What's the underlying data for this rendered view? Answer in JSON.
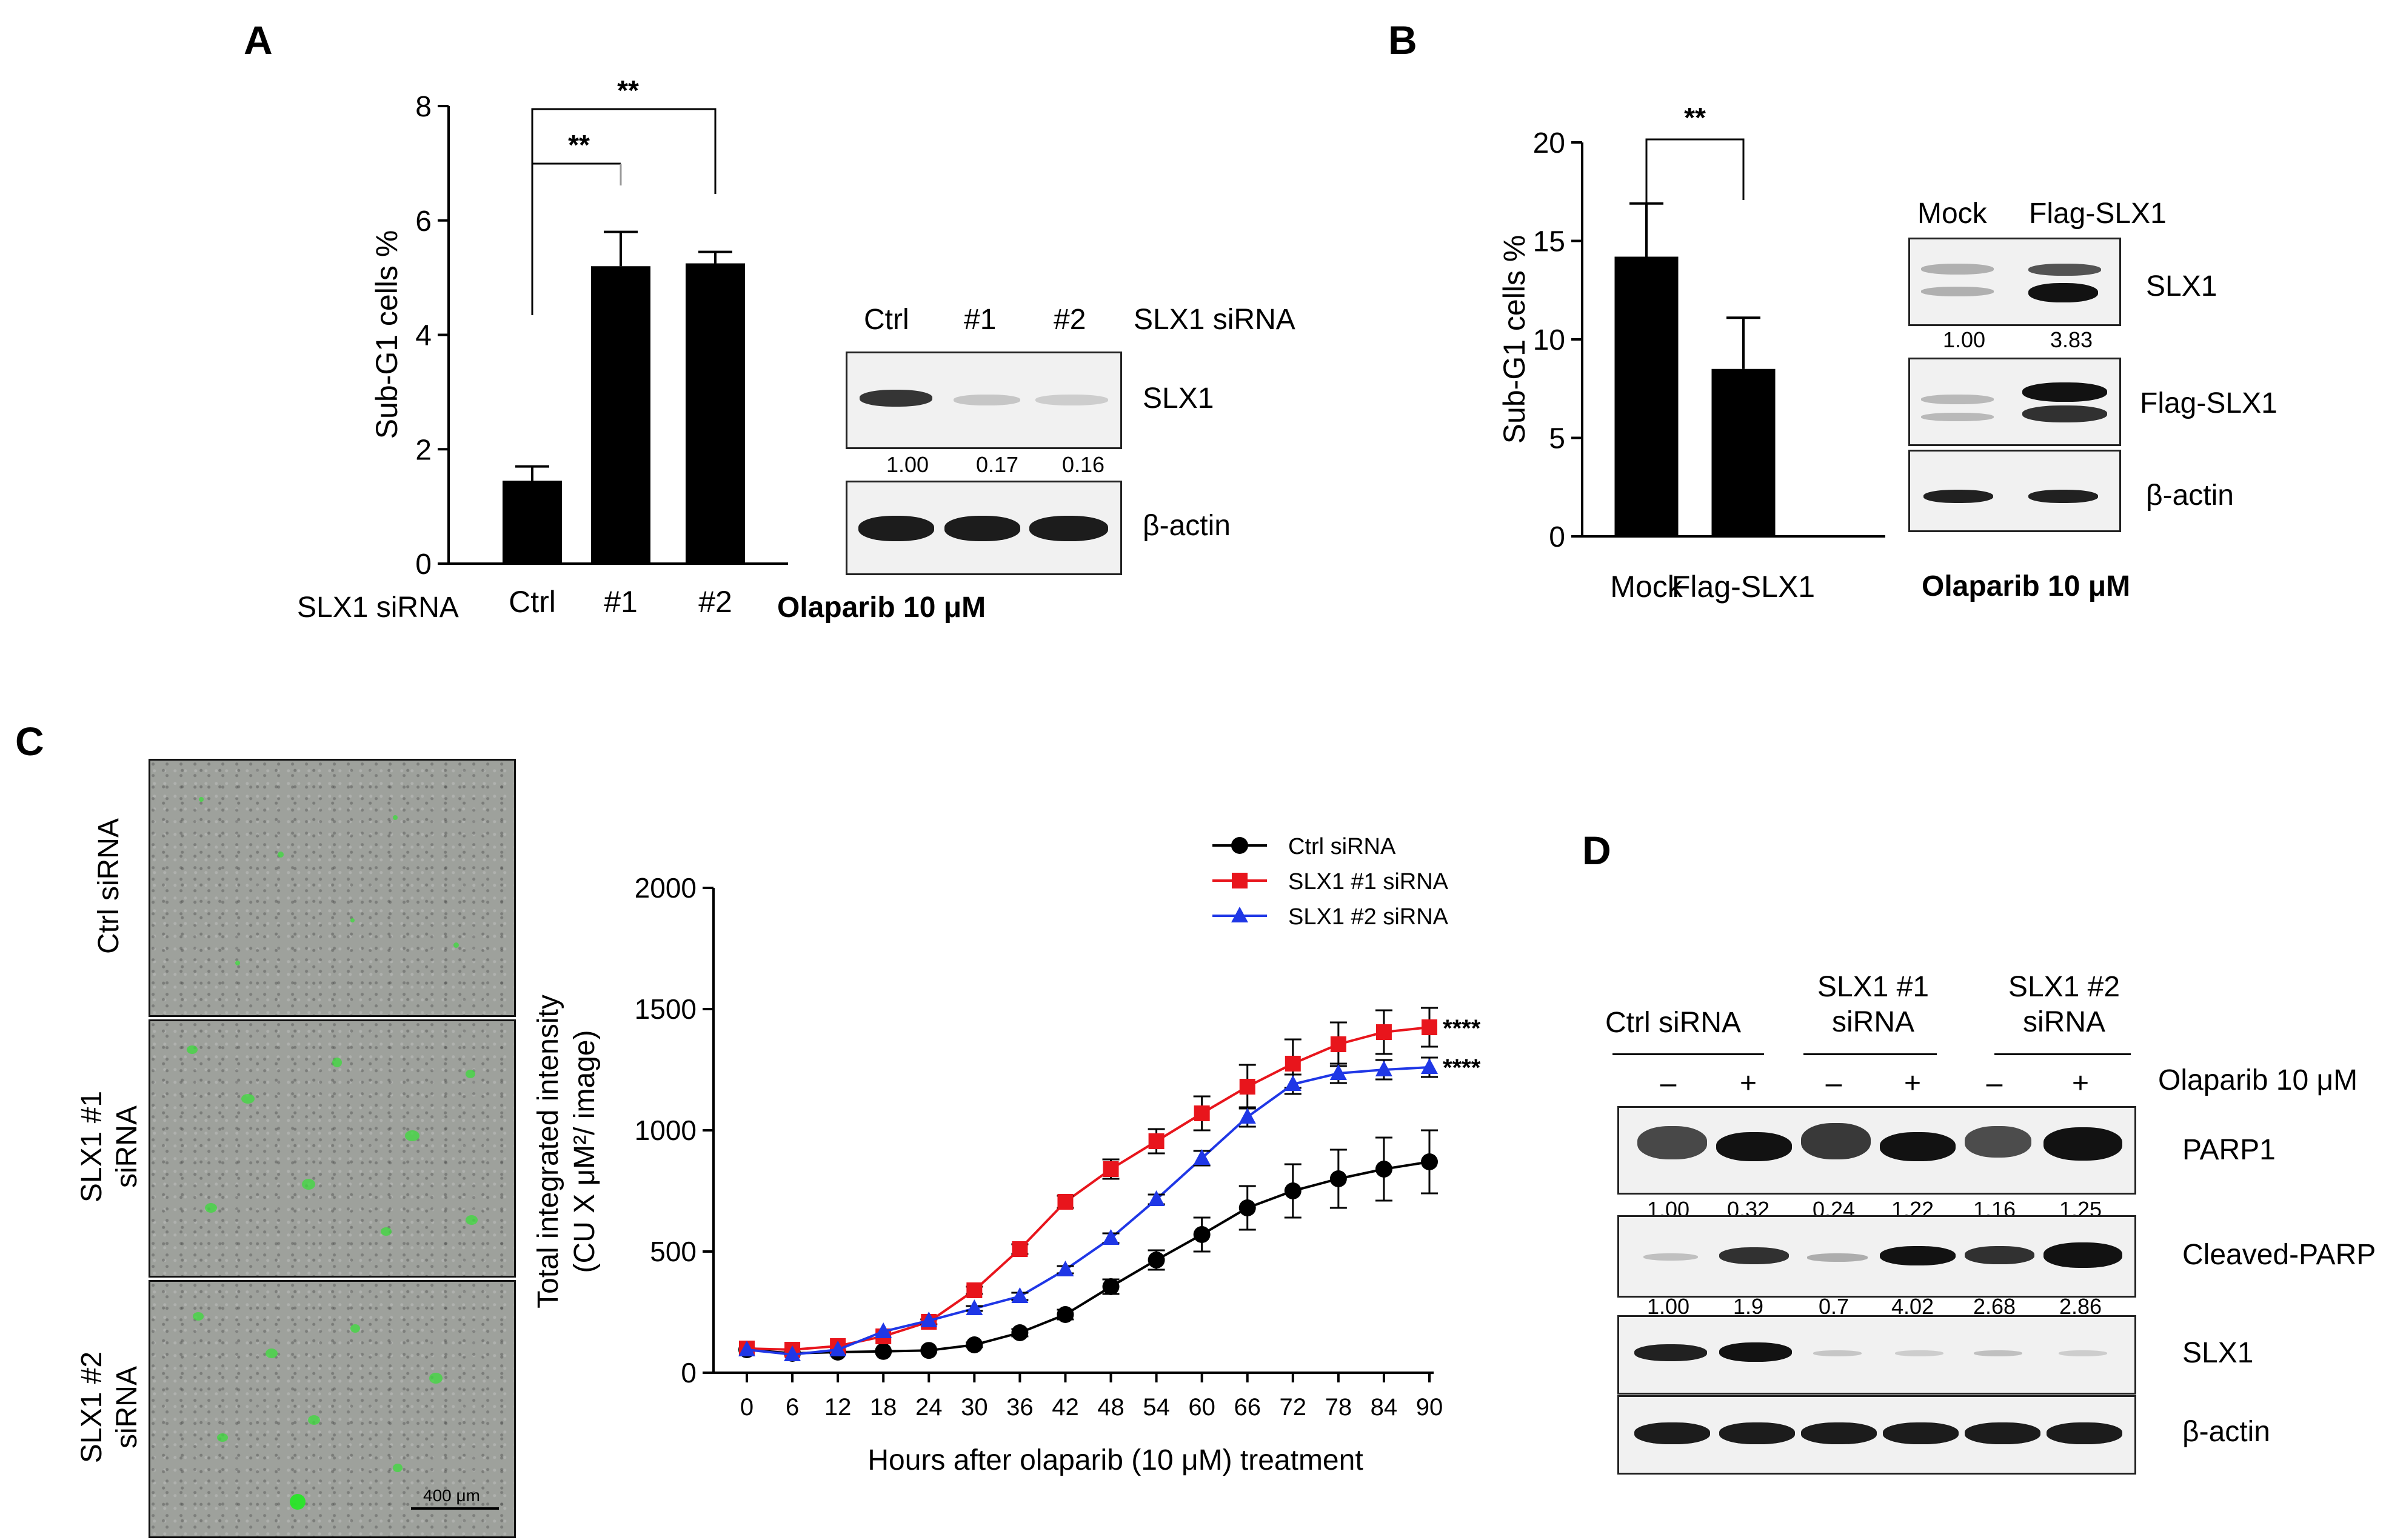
{
  "panels": {
    "A": "A",
    "B": "B",
    "C": "C",
    "D": "D"
  },
  "panel_a": {
    "row_label": "SLX1 siRNA",
    "categories": [
      "Ctrl",
      "#1",
      "#2"
    ],
    "sig": [
      "**",
      "**"
    ],
    "blot": {
      "lanes": [
        "Ctrl",
        "#1",
        "#2"
      ],
      "header_label": "SLX1 siRNA",
      "bands": [
        "SLX1",
        "β-actin"
      ],
      "quant": [
        "1.00",
        "0.17",
        "0.16"
      ],
      "treatment": "Olaparib 10 μM"
    }
  },
  "panel_b": {
    "sig": "**",
    "blot": {
      "lanes": [
        "Mock",
        "Flag-SLX1"
      ],
      "bands": [
        "SLX1",
        "Flag-SLX1",
        "β-actin"
      ],
      "quant": [
        "1.00",
        "3.83"
      ],
      "treatment": "Olaparib 10 μM"
    }
  },
  "panel_c": {
    "images": [
      "Ctrl siRNA",
      "SLX1 #1 siRNA",
      "SLX1 #2 siRNA"
    ],
    "scalebar": "400 μm",
    "sig": [
      "****",
      "****"
    ]
  },
  "panel_d": {
    "groups": [
      "Ctrl siRNA",
      "SLX1 #1 siRNA",
      "SLX1 #2 siRNA"
    ],
    "treatment": "Olaparib 10 μM",
    "signs": [
      "–",
      "+",
      "–",
      "+",
      "–",
      "+"
    ],
    "bands": [
      "PARP1",
      "Cleaved-PARP",
      "SLX1",
      "β-actin"
    ],
    "quant_parp": [
      "1.00",
      "0.32",
      "0.24",
      "1.22",
      "1.16",
      "1.25"
    ],
    "quant_cleaved": [
      "1.00",
      "1.9",
      "0.7",
      "4.02",
      "2.68",
      "2.86"
    ]
  },
  "chart_data": [
    {
      "type": "bar",
      "panel": "A",
      "categories": [
        "Ctrl",
        "#1",
        "#2"
      ],
      "values": [
        1.45,
        5.2,
        5.25
      ],
      "errors": [
        0.25,
        0.6,
        0.2
      ],
      "ylabel": "Sub-G1 cells %",
      "ylim": [
        0,
        8
      ],
      "yticks": [
        "0",
        "2",
        "4",
        "6",
        "8"
      ]
    },
    {
      "type": "bar",
      "panel": "B",
      "categories": [
        "Mock",
        "Flag-SLX1"
      ],
      "values": [
        14.2,
        8.5
      ],
      "errors": [
        2.7,
        2.6
      ],
      "ylabel": "Sub-G1 cells %",
      "ylim": [
        0,
        20
      ],
      "yticks": [
        "0",
        "5",
        "10",
        "15",
        "20"
      ]
    },
    {
      "type": "line",
      "panel": "C",
      "xlabel": "Hours after olaparib (10 μM) treatment",
      "ylabel": "Total integrated intensity",
      "ylabel2": "(CU X μM²/ image)",
      "xlim": [
        0,
        90
      ],
      "ylim": [
        0,
        2000
      ],
      "x": [
        0,
        6,
        12,
        18,
        24,
        30,
        36,
        42,
        48,
        54,
        60,
        66,
        72,
        78,
        84,
        90
      ],
      "xticks": [
        "0",
        "6",
        "12",
        "18",
        "24",
        "30",
        "36",
        "42",
        "48",
        "54",
        "60",
        "66",
        "72",
        "78",
        "84",
        "90"
      ],
      "yticks": [
        "0",
        "500",
        "1000",
        "1500",
        "2000"
      ],
      "series": [
        {
          "name": "Ctrl siRNA",
          "color": "#000000",
          "marker": "circle",
          "values": [
            95,
            80,
            85,
            88,
            92,
            115,
            165,
            240,
            355,
            465,
            570,
            680,
            750,
            800,
            840,
            870
          ],
          "errors": [
            0,
            0,
            0,
            0,
            0,
            10,
            15,
            20,
            30,
            40,
            70,
            90,
            110,
            120,
            130,
            130
          ]
        },
        {
          "name": "SLX1 #1 siRNA",
          "color": "#e8151c",
          "marker": "square",
          "values": [
            100,
            95,
            110,
            150,
            210,
            340,
            510,
            705,
            840,
            955,
            1070,
            1180,
            1275,
            1355,
            1405,
            1425
          ],
          "errors": [
            0,
            0,
            0,
            0,
            10,
            15,
            20,
            25,
            40,
            50,
            70,
            90,
            100,
            90,
            90,
            80
          ]
        },
        {
          "name": "SLX1 #2 siRNA",
          "color": "#1f37e6",
          "marker": "triangle",
          "values": [
            95,
            75,
            95,
            170,
            215,
            265,
            315,
            425,
            555,
            715,
            885,
            1055,
            1190,
            1235,
            1250,
            1260
          ],
          "errors": [
            0,
            0,
            0,
            0,
            0,
            10,
            15,
            15,
            20,
            20,
            30,
            40,
            40,
            40,
            40,
            40
          ]
        }
      ],
      "legend": "top-right"
    }
  ]
}
